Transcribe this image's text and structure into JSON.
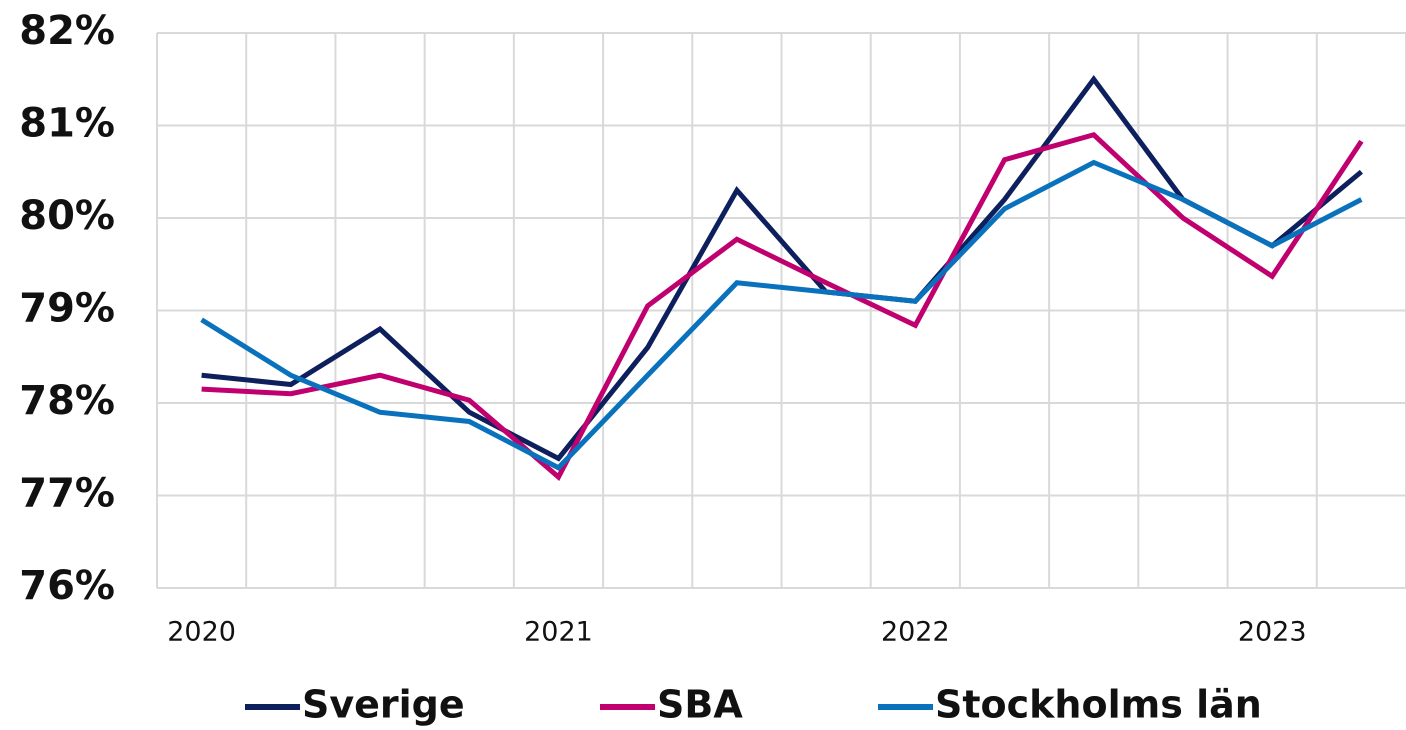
{
  "chart_data": {
    "type": "line",
    "categories": [
      "2020",
      null,
      null,
      null,
      "2021",
      null,
      null,
      null,
      "2022",
      null,
      null,
      null,
      "2023",
      null
    ],
    "series": [
      {
        "name": "Sverige",
        "color": "#0d1f5c",
        "values": [
          78.3,
          78.2,
          78.8,
          77.9,
          77.4,
          78.6,
          80.3,
          79.2,
          79.1,
          80.2,
          81.5,
          80.2,
          79.7,
          80.5
        ]
      },
      {
        "name": "SBA",
        "color": "#c0006f",
        "values": [
          78.15,
          78.1,
          78.3,
          78.03,
          77.2,
          79.05,
          79.77,
          79.3,
          78.84,
          80.63,
          80.9,
          80.0,
          79.37,
          80.83
        ]
      },
      {
        "name": "Stockholms län",
        "color": "#0a72bd",
        "values": [
          78.9,
          78.3,
          77.9,
          77.8,
          77.3,
          78.3,
          79.3,
          79.2,
          79.1,
          80.1,
          80.6,
          80.2,
          79.7,
          80.2
        ]
      }
    ],
    "ylim": [
      76,
      82
    ],
    "yticks": [
      {
        "value": 76,
        "label": "76%"
      },
      {
        "value": 77,
        "label": "77%"
      },
      {
        "value": 78,
        "label": "78%"
      },
      {
        "value": 79,
        "label": "79%"
      },
      {
        "value": 80,
        "label": "80%"
      },
      {
        "value": 81,
        "label": "81%"
      },
      {
        "value": 82,
        "label": "82%"
      }
    ],
    "grid": true,
    "legend": "bottom"
  }
}
